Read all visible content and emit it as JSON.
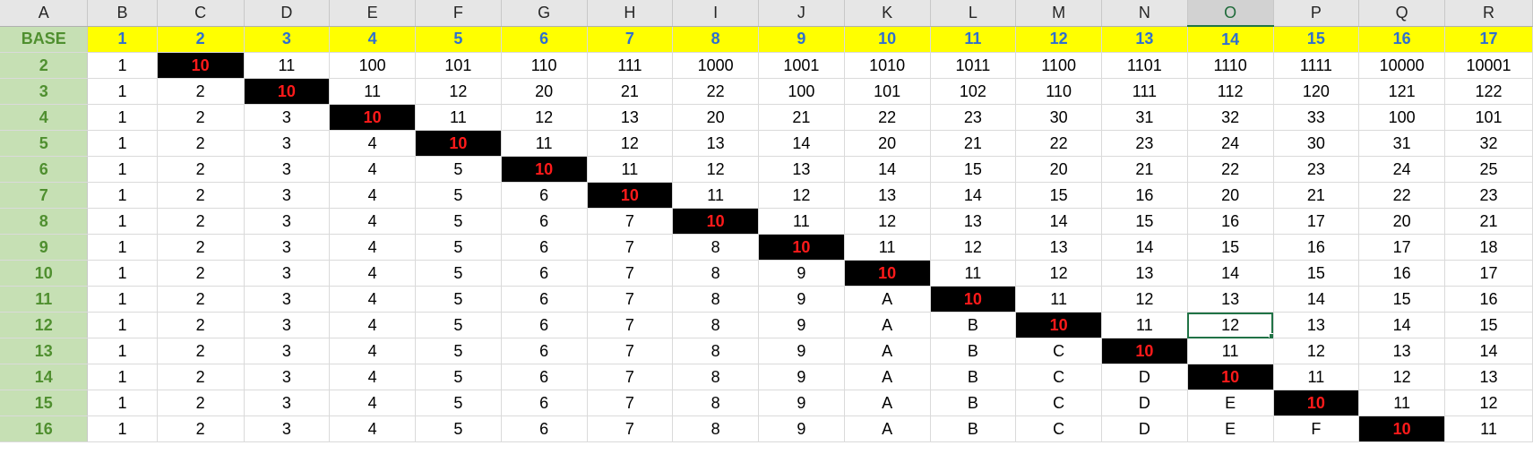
{
  "column_headers": [
    "A",
    "B",
    "C",
    "D",
    "E",
    "F",
    "G",
    "H",
    "I",
    "J",
    "K",
    "L",
    "M",
    "N",
    "O",
    "P",
    "Q",
    "R"
  ],
  "selected_column": "O",
  "base_row": [
    "BASE",
    "1",
    "2",
    "3",
    "4",
    "5",
    "6",
    "7",
    "8",
    "9",
    "10",
    "11",
    "12",
    "13",
    "14",
    "15",
    "16",
    "17"
  ],
  "rows": [
    [
      "2",
      "1",
      "10",
      "11",
      "100",
      "101",
      "110",
      "111",
      "1000",
      "1001",
      "1010",
      "1011",
      "1100",
      "1101",
      "1110",
      "1111",
      "10000",
      "10001"
    ],
    [
      "3",
      "1",
      "2",
      "10",
      "11",
      "12",
      "20",
      "21",
      "22",
      "100",
      "101",
      "102",
      "110",
      "111",
      "112",
      "120",
      "121",
      "122"
    ],
    [
      "4",
      "1",
      "2",
      "3",
      "10",
      "11",
      "12",
      "13",
      "20",
      "21",
      "22",
      "23",
      "30",
      "31",
      "32",
      "33",
      "100",
      "101"
    ],
    [
      "5",
      "1",
      "2",
      "3",
      "4",
      "10",
      "11",
      "12",
      "13",
      "14",
      "20",
      "21",
      "22",
      "23",
      "24",
      "30",
      "31",
      "32"
    ],
    [
      "6",
      "1",
      "2",
      "3",
      "4",
      "5",
      "10",
      "11",
      "12",
      "13",
      "14",
      "15",
      "20",
      "21",
      "22",
      "23",
      "24",
      "25"
    ],
    [
      "7",
      "1",
      "2",
      "3",
      "4",
      "5",
      "6",
      "10",
      "11",
      "12",
      "13",
      "14",
      "15",
      "16",
      "20",
      "21",
      "22",
      "23"
    ],
    [
      "8",
      "1",
      "2",
      "3",
      "4",
      "5",
      "6",
      "7",
      "10",
      "11",
      "12",
      "13",
      "14",
      "15",
      "16",
      "17",
      "20",
      "21"
    ],
    [
      "9",
      "1",
      "2",
      "3",
      "4",
      "5",
      "6",
      "7",
      "8",
      "10",
      "11",
      "12",
      "13",
      "14",
      "15",
      "16",
      "17",
      "18"
    ],
    [
      "10",
      "1",
      "2",
      "3",
      "4",
      "5",
      "6",
      "7",
      "8",
      "9",
      "10",
      "11",
      "12",
      "13",
      "14",
      "15",
      "16",
      "17"
    ],
    [
      "11",
      "1",
      "2",
      "3",
      "4",
      "5",
      "6",
      "7",
      "8",
      "9",
      "A",
      "10",
      "11",
      "12",
      "13",
      "14",
      "15",
      "16"
    ],
    [
      "12",
      "1",
      "2",
      "3",
      "4",
      "5",
      "6",
      "7",
      "8",
      "9",
      "A",
      "B",
      "10",
      "11",
      "12",
      "13",
      "14",
      "15"
    ],
    [
      "13",
      "1",
      "2",
      "3",
      "4",
      "5",
      "6",
      "7",
      "8",
      "9",
      "A",
      "B",
      "C",
      "10",
      "11",
      "12",
      "13",
      "14"
    ],
    [
      "14",
      "1",
      "2",
      "3",
      "4",
      "5",
      "6",
      "7",
      "8",
      "9",
      "A",
      "B",
      "C",
      "D",
      "10",
      "11",
      "12",
      "13"
    ],
    [
      "15",
      "1",
      "2",
      "3",
      "4",
      "5",
      "6",
      "7",
      "8",
      "9",
      "A",
      "B",
      "C",
      "D",
      "E",
      "10",
      "11",
      "12"
    ],
    [
      "16",
      "1",
      "2",
      "3",
      "4",
      "5",
      "6",
      "7",
      "8",
      "9",
      "A",
      "B",
      "C",
      "D",
      "E",
      "F",
      "10",
      "11"
    ]
  ],
  "active_cell": {
    "row_label": "12",
    "column": "O",
    "value": "12"
  },
  "colors": {
    "base_row_fill": "#ffff00",
    "base_row_text": "#2f6fcf",
    "row_label_fill": "#c6e0b4",
    "row_label_text": "#4f8f2f",
    "diagonal_fill": "#000000",
    "diagonal_text": "#ff1a1a",
    "selection_accent": "#217346"
  }
}
